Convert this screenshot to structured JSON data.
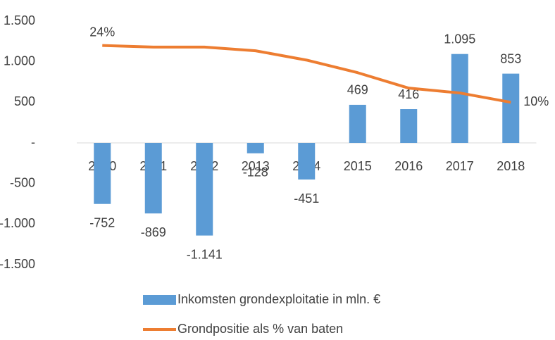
{
  "chart_data": {
    "type": "bar-line",
    "categories": [
      "2010",
      "2011",
      "2012",
      "2013",
      "2014",
      "2015",
      "2016",
      "2017",
      "2018"
    ],
    "series": [
      {
        "name": "Inkomsten grondexploitatie in mln. €",
        "type": "bar",
        "color": "#5b9bd5",
        "values": [
          -752,
          -869,
          -1141,
          -128,
          -451,
          469,
          416,
          1095,
          853
        ],
        "value_labels": [
          "-752",
          "-869",
          "-1.141",
          "-128",
          "-451",
          "469",
          "416",
          "1.095",
          "853"
        ]
      },
      {
        "name": "Grondpositie als % van baten",
        "type": "line",
        "color": "#ed7d31",
        "axis": "y2",
        "values": [
          24,
          23.6,
          23.6,
          22.7,
          20.4,
          17.3,
          13.5,
          12.3,
          10
        ],
        "value_labels": [
          "24%",
          null,
          null,
          null,
          null,
          null,
          null,
          null,
          "10%"
        ]
      }
    ],
    "ylim": [
      -1500,
      1500
    ],
    "yticks": [
      {
        "value": -1500,
        "label": "-1.500"
      },
      {
        "value": -1000,
        "label": "-1.000"
      },
      -500,
      {
        "value": 0,
        "label": "-"
      },
      500,
      {
        "value": 1000,
        "label": "1.000"
      },
      {
        "value": 1500,
        "label": "1.500"
      }
    ],
    "y2lim": [
      -30,
      30
    ],
    "grid": false,
    "legend": "bottom"
  }
}
